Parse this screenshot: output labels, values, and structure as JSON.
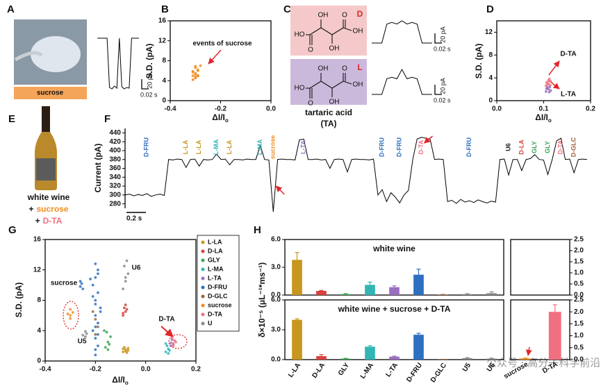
{
  "panel_letters": [
    "A",
    "B",
    "C",
    "D",
    "E",
    "F",
    "G",
    "H"
  ],
  "panel_a": {
    "label": "sucrose"
  },
  "panel_c": {
    "molecules": [
      {
        "tag": "D",
        "color": "#f5c9c9",
        "atoms": [
          "HO",
          "O",
          "OH",
          "OH",
          "O",
          "OH"
        ]
      },
      {
        "tag": "L",
        "color": "#cbb9dc",
        "atoms": [
          "HO",
          "O",
          "OH",
          "OH",
          "O",
          "OH"
        ]
      }
    ],
    "caption": "tartaric acid",
    "caption_abbr": "(TA)"
  },
  "panel_e": {
    "sample": "white wine",
    "additions": [
      {
        "sign": "+",
        "name": "sucrose",
        "color": "#f08c1e"
      },
      {
        "sign": "+",
        "name": "D-TA",
        "color": "#f07080"
      }
    ]
  },
  "watermark": "公众号 · 高分子科学前沿",
  "chart_data": [
    {
      "type": "line",
      "color": "#000000",
      "values": [
        0,
        0,
        0,
        0,
        0,
        -70,
        -72,
        -68,
        -71,
        0,
        -69,
        -72,
        -70,
        -71,
        0,
        0,
        0,
        0
      ],
      "scale_current": "20 pA",
      "scale_time": "0.02 s"
    },
    {
      "type": "scatter",
      "xlabel": "ΔI/I",
      "xlabel_sub": "o",
      "ylabel": "S.D. (pA)",
      "xlim": [
        -0.4,
        0
      ],
      "xticks": [
        -0.4,
        -0.2,
        {
          "value": 0,
          "label": "0.0"
        }
      ],
      "ylim": [
        0,
        16
      ],
      "yticks": [
        0,
        4,
        8,
        12,
        16
      ],
      "annotations": [
        "events of sucrose"
      ],
      "series": [
        {
          "color": "#f08c1e",
          "x": [
            -0.31,
            -0.3,
            -0.29,
            -0.3,
            -0.31,
            -0.29,
            -0.3,
            -0.28,
            -0.31,
            -0.3,
            -0.29,
            -0.3,
            -0.3,
            -0.29,
            -0.31
          ],
          "values": [
            4.2,
            4.8,
            5.1,
            5.5,
            5.9,
            6.2,
            6.6,
            7.0,
            5.0,
            4.5,
            6.0,
            5.3,
            6.9,
            4.9,
            5.7
          ]
        }
      ]
    },
    {
      "type": "line",
      "color": "#000000",
      "values": [
        0,
        0,
        0,
        12,
        13,
        12,
        14,
        12,
        13,
        12,
        0,
        0,
        0
      ],
      "scale_current": "20 pA",
      "scale_time": "0.02 s"
    },
    {
      "type": "line",
      "color": "#000000",
      "values": [
        0,
        0,
        0,
        10,
        11,
        10,
        16,
        10,
        11,
        10,
        0,
        0,
        0
      ],
      "scale_current": "20 pA",
      "scale_time": "0.02 s"
    },
    {
      "type": "scatter",
      "xlabel": "ΔI/I",
      "xlabel_sub": "o",
      "ylabel": "S.D. (pA)",
      "xlim": [
        0,
        0.2
      ],
      "xticks": [
        {
          "value": 0,
          "label": "0.0"
        },
        0.1,
        0.2
      ],
      "ylim": [
        0,
        14
      ],
      "yticks": [
        0,
        4,
        8,
        12
      ],
      "annotations": [
        "D-TA",
        "L-TA"
      ],
      "series": [
        {
          "color": "#f07080",
          "x": [
            0.105,
            0.11,
            0.115,
            0.108,
            0.112,
            0.106,
            0.114,
            0.11
          ],
          "values": [
            2.6,
            3.0,
            3.4,
            2.8,
            3.8,
            3.2,
            2.7,
            3.5
          ]
        },
        {
          "color": "#9b6fc0",
          "x": [
            0.105,
            0.11,
            0.115,
            0.108,
            0.112,
            0.106,
            0.113
          ],
          "values": [
            1.6,
            2.0,
            1.8,
            2.3,
            1.5,
            2.1,
            2.4
          ]
        }
      ]
    },
    {
      "type": "line",
      "color": "#000000",
      "ylabel": "Current (pA)",
      "ylim": [
        270,
        450
      ],
      "yticks": [
        280,
        300,
        320,
        340,
        360,
        380,
        400,
        420,
        440
      ],
      "scale_time": "0.2 s",
      "values": [
        300,
        302,
        298,
        301,
        299,
        303,
        297,
        300,
        302,
        299,
        380,
        379,
        381,
        380,
        362,
        380,
        381,
        365,
        380,
        379,
        380,
        392,
        380,
        381,
        368,
        380,
        380,
        379,
        381,
        380,
        380,
        412,
        380,
        379,
        262,
        380,
        381,
        380,
        380,
        379,
        424,
        426,
        380,
        380,
        381,
        379,
        380,
        360,
        380,
        381,
        380,
        352,
        380,
        381,
        380,
        380,
        379,
        381,
        300,
        312,
        285,
        305,
        295,
        282,
        300,
        310,
        380,
        426,
        430,
        428,
        425,
        380,
        381,
        380,
        285,
        288,
        281,
        290,
        284,
        287,
        283,
        289,
        285,
        282,
        286,
        284,
        380,
        381,
        345,
        380,
        380,
        355,
        380,
        382,
        391,
        380,
        379,
        346,
        380,
        422,
        428,
        380,
        381,
        350,
        380,
        381,
        380
      ],
      "events": [
        {
          "label": "D-FRU",
          "color": "#2f6fbf"
        },
        {
          "label": "L-LA",
          "color": "#c8961e"
        },
        {
          "label": "L-LA",
          "color": "#c8961e"
        },
        {
          "label": "L-MA",
          "color": "#33b5b5"
        },
        {
          "label": "L-LA",
          "color": "#c8961e"
        },
        {
          "label": "L-MA",
          "color": "#33b5b5"
        },
        {
          "label": "sucrose",
          "color": "#f08c1e"
        },
        {
          "label": "L-TA",
          "color": "#9b6fc0"
        },
        {
          "label": "D-FRU",
          "color": "#2f6fbf"
        },
        {
          "label": "D-FRU",
          "color": "#2f6fbf"
        },
        {
          "label": "D-TA",
          "color": "#f07080"
        },
        {
          "label": "D-FRU",
          "color": "#2f6fbf"
        },
        {
          "label": "U6",
          "color": "#222222"
        },
        {
          "label": "D-LA",
          "color": "#d9413c"
        },
        {
          "label": "GLY",
          "color": "#3aa455"
        },
        {
          "label": "GLY",
          "color": "#3aa455"
        },
        {
          "label": "D-TA",
          "color": "#f07080"
        },
        {
          "label": "D-GLC",
          "color": "#a0603c"
        }
      ]
    },
    {
      "type": "scatter",
      "xlabel": "ΔI/I",
      "xlabel_sub": "o",
      "ylabel": "S.D. (pA)",
      "xlim": [
        -0.4,
        0.2
      ],
      "xticks": [
        -0.4,
        -0.2,
        {
          "value": 0,
          "label": "0.0"
        },
        0.2
      ],
      "ylim": [
        0,
        16
      ],
      "yticks": [
        0,
        4,
        8,
        12,
        16
      ],
      "legend": "right",
      "annotations": [
        "sucrose",
        "U5",
        "U6",
        "D-TA"
      ],
      "series": [
        {
          "name": "L-LA",
          "color": "#c8961e",
          "x": [
            -0.09,
            -0.08,
            -0.07,
            -0.085,
            -0.075,
            -0.08,
            -0.09,
            -0.07
          ],
          "values": [
            1.2,
            1.5,
            1.4,
            1.8,
            1.1,
            1.3,
            1.6,
            1.7
          ]
        },
        {
          "name": "D-LA",
          "color": "#d9413c",
          "x": [
            -0.09,
            -0.08,
            -0.085,
            -0.075,
            -0.08,
            -0.09
          ],
          "values": [
            6.0,
            6.5,
            7.0,
            6.8,
            7.4,
            6.3
          ]
        },
        {
          "name": "GLY",
          "color": "#3aa455",
          "x": [
            -0.16,
            -0.15,
            -0.14,
            -0.155,
            -0.145,
            -0.15,
            -0.165
          ],
          "values": [
            1.8,
            2.5,
            3.2,
            3.8,
            2.2,
            1.5,
            4.0
          ]
        },
        {
          "name": "L-MA",
          "color": "#33b5b5",
          "x": [
            0.08,
            0.09,
            0.085,
            0.095,
            0.08,
            0.09
          ],
          "values": [
            1.2,
            1.6,
            2.0,
            1.4,
            2.3,
            1.0
          ]
        },
        {
          "name": "L-TA",
          "color": "#9b6fc0",
          "x": [
            0.1,
            0.105,
            0.11,
            0.1
          ],
          "values": [
            2.4,
            2.8,
            2.2,
            2.0
          ]
        },
        {
          "name": "D-FRU",
          "color": "#2f6fbf",
          "x": [
            -0.26,
            -0.255,
            -0.25,
            -0.26,
            -0.2,
            -0.19,
            -0.2,
            -0.21,
            -0.19,
            -0.2,
            -0.18,
            -0.2,
            -0.19,
            -0.21,
            -0.2,
            -0.19,
            -0.2,
            -0.18,
            -0.2,
            -0.19,
            -0.21,
            -0.2,
            -0.19,
            -0.2,
            -0.22
          ],
          "values": [
            9.8,
            10.2,
            9.5,
            10.5,
            0.8,
            2,
            3,
            4,
            5,
            6,
            7,
            8,
            9,
            10,
            11,
            12,
            12.8,
            6.5,
            4.5,
            3.5,
            8.5,
            1.5,
            11.5,
            7.5,
            10.8
          ]
        },
        {
          "name": "D-GLC",
          "color": "#a0603c",
          "x": [
            -0.2,
            -0.19,
            -0.2,
            -0.21
          ],
          "values": [
            3.5,
            4.5,
            5.5,
            6.5
          ]
        },
        {
          "name": "sucrose",
          "color": "#f08c1e",
          "x": [
            -0.3,
            -0.3,
            -0.29,
            -0.31,
            -0.3
          ],
          "values": [
            5.6,
            6.0,
            6.4,
            6.2,
            6.8
          ]
        },
        {
          "name": "D-TA",
          "color": "#f07080",
          "x": [
            0.11,
            0.115,
            0.105,
            0.11,
            0.12
          ],
          "values": [
            2.3,
            2.7,
            3.0,
            2.0,
            2.5
          ]
        },
        {
          "name": "U",
          "color": "#888888",
          "x": [
            -0.09,
            -0.08,
            -0.07,
            -0.085,
            -0.075,
            -0.08,
            -0.24,
            -0.235,
            -0.25,
            -0.24
          ],
          "values": [
            9.5,
            10.5,
            11.5,
            12.5,
            13.2,
            11,
            3.2,
            3.6,
            3.4,
            3.9
          ]
        }
      ]
    },
    {
      "type": "bar",
      "title": "white wine",
      "values": [
        3.8,
        0.45,
        0.1,
        1.1,
        0.85,
        2.2,
        0.05,
        0.1,
        0.2
      ],
      "errors": [
        0.8,
        0.05,
        0.05,
        0.3,
        0.15,
        0.6,
        0.02,
        0.05,
        0.15
      ],
      "colors": [
        "#c8961e",
        "#d9413c",
        "#3aa455",
        "#33b5b5",
        "#9b6fc0",
        "#2f6fbf",
        "#a0603c",
        "#888888",
        "#888888"
      ],
      "ylim": [
        0,
        6
      ],
      "yticks": [
        {
          "value": 0,
          "label": "0.0"
        },
        {
          "value": 3,
          "label": "3.0"
        },
        {
          "value": 6,
          "label": "6.0"
        }
      ],
      "y2lim": [
        0,
        2.5
      ],
      "y2ticks": [
        {
          "value": 0,
          "label": "0.0"
        },
        0.5,
        {
          "value": 1,
          "label": "1.0"
        },
        1.5,
        {
          "value": 2,
          "label": "2.0"
        },
        2.5
      ]
    },
    {
      "type": "bar",
      "title": "white wine + sucrose +  D-TA",
      "ylabel": "δ×10⁻⁵ (μL⁻¹*ms⁻¹)",
      "categories": [
        "L-LA",
        "D-LA",
        "GLY",
        "L-MA",
        "L-TA",
        "D-FRU",
        "D-GLC",
        "U5",
        "U6"
      ],
      "values": [
        4.0,
        0.35,
        0.1,
        1.3,
        0.3,
        2.5,
        0.02,
        0.15,
        0.1
      ],
      "errors": [
        0.1,
        0.15,
        0.03,
        0.1,
        0.05,
        0.15,
        0.01,
        0.05,
        0.05
      ],
      "colors": [
        "#c8961e",
        "#d9413c",
        "#3aa455",
        "#33b5b5",
        "#9b6fc0",
        "#2f6fbf",
        "#a0603c",
        "#888888",
        "#888888"
      ],
      "ylim": [
        0,
        6
      ],
      "yticks": [
        {
          "value": 0,
          "label": "0.0"
        },
        {
          "value": 3,
          "label": "3.0"
        },
        {
          "value": 6,
          "label": "6.0"
        }
      ],
      "y2lim": [
        0,
        2.5
      ],
      "y2ticks": [
        {
          "value": 0,
          "label": "0.0"
        },
        0.5,
        {
          "value": 1,
          "label": "1.0"
        },
        1.5,
        {
          "value": 2,
          "label": "2.0"
        },
        2.5
      ],
      "y2_series": {
        "axis": "y2",
        "categories": [
          "sucrose",
          "D-TA"
        ],
        "values": [
          0.05,
          2.0
        ],
        "errors": [
          0.02,
          0.3
        ],
        "colors": [
          "#f08c1e",
          "#f07080"
        ]
      }
    }
  ]
}
